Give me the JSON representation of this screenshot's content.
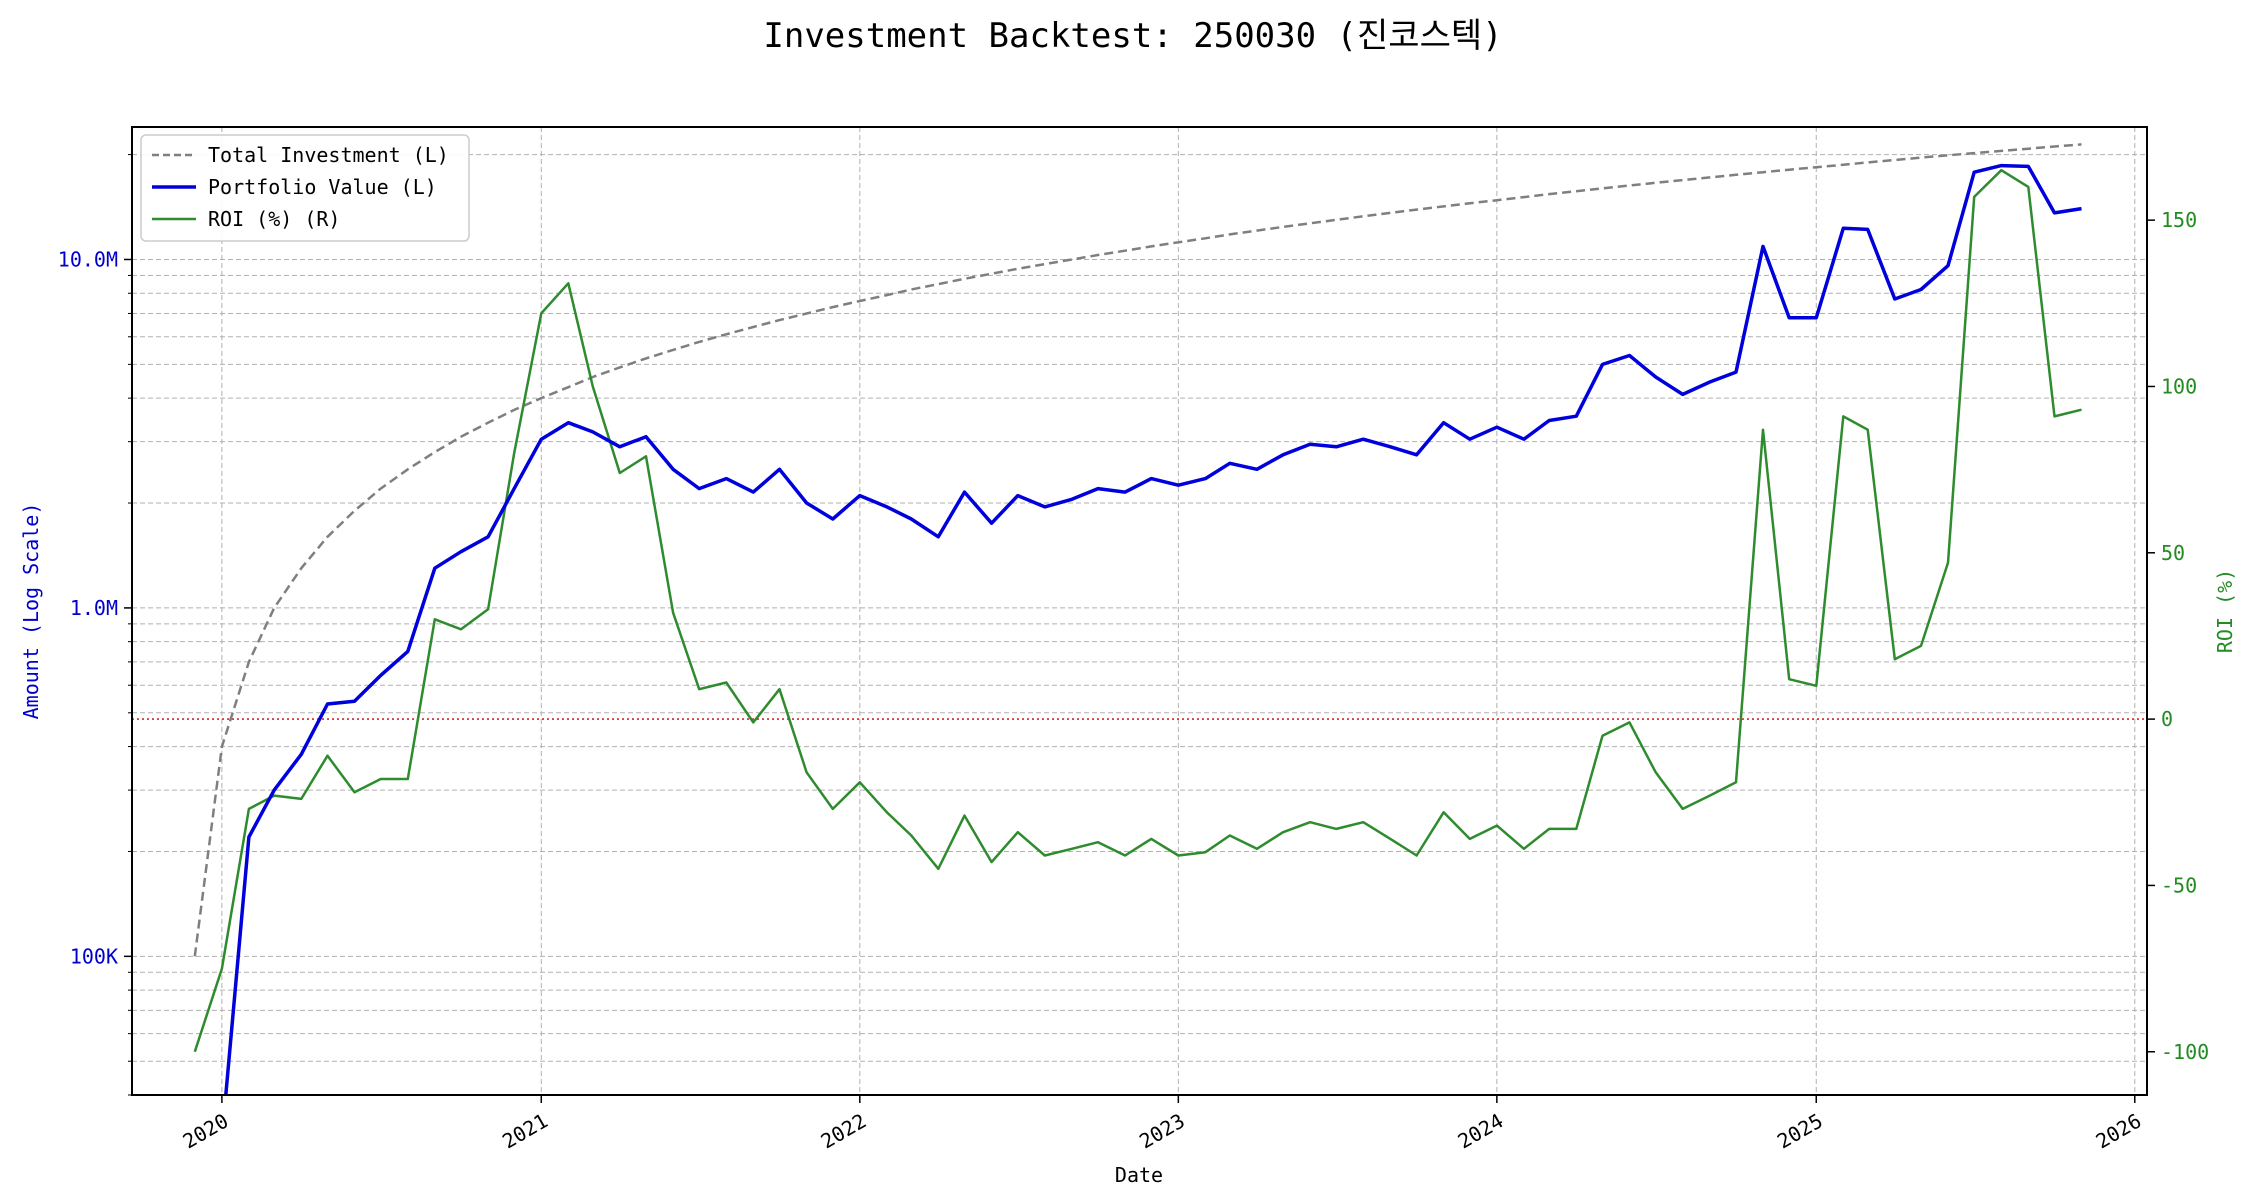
{
  "chart_data": {
    "type": "line",
    "title": "Investment Backtest: 250030 (진코스텍)",
    "xlabel": "Date",
    "ylabel_left": "Amount (Log Scale)",
    "ylabel_right": "ROI (%)",
    "y_left_scale": "log",
    "y_left_range": [
      40000,
      24000000
    ],
    "y_right_range": [
      -113,
      178
    ],
    "x_range": [
      "2019-09-20",
      "2026-01-15"
    ],
    "x_tick_labels": [
      "2020",
      "2021",
      "2022",
      "2023",
      "2024",
      "2025",
      "2026"
    ],
    "y_left_ticks": [
      {
        "value": 100000,
        "label": "100K"
      },
      {
        "value": 1000000,
        "label": "1.0M"
      },
      {
        "value": 10000000,
        "label": "10.0M"
      }
    ],
    "y_right_ticks": [
      -100,
      -50,
      0,
      50,
      100,
      150
    ],
    "grid": true,
    "legend_position": "upper-left",
    "colors": {
      "total_investment": "#7f7f7f",
      "portfolio": "#0000dd",
      "roi": "#2e8b2e",
      "zero_line": "#d62728",
      "left_axis": "#0000cc",
      "right_axis": "#228b22"
    },
    "series": [
      {
        "name": "Total Investment (L)",
        "axis": "left",
        "style": "dashed",
        "x": [
          "2019-12",
          "2020-01",
          "2020-02",
          "2020-03",
          "2020-04",
          "2020-05",
          "2020-06",
          "2020-07",
          "2020-08",
          "2020-09",
          "2020-10",
          "2020-11",
          "2020-12",
          "2021-01",
          "2021-02",
          "2021-03",
          "2021-04",
          "2021-05",
          "2021-06",
          "2021-07",
          "2021-08",
          "2021-09",
          "2021-10",
          "2021-11",
          "2021-12",
          "2022-01",
          "2022-02",
          "2022-03",
          "2022-04",
          "2022-05",
          "2022-06",
          "2022-07",
          "2022-08",
          "2022-09",
          "2022-10",
          "2022-11",
          "2022-12",
          "2023-01",
          "2023-02",
          "2023-03",
          "2023-04",
          "2023-05",
          "2023-06",
          "2023-07",
          "2023-08",
          "2023-09",
          "2023-10",
          "2023-11",
          "2023-12",
          "2024-01",
          "2024-02",
          "2024-03",
          "2024-04",
          "2024-05",
          "2024-06",
          "2024-07",
          "2024-08",
          "2024-09",
          "2024-10",
          "2024-11",
          "2024-12",
          "2025-01",
          "2025-02",
          "2025-03",
          "2025-04",
          "2025-05",
          "2025-06",
          "2025-07",
          "2025-08",
          "2025-09",
          "2025-10",
          "2025-11"
        ],
        "values": [
          100000,
          400000,
          700000,
          1000000,
          1300000,
          1600000,
          1900000,
          2200000,
          2500000,
          2800000,
          3100000,
          3400000,
          3700000,
          4000000,
          4300000,
          4600000,
          4900000,
          5200000,
          5500000,
          5800000,
          6100000,
          6400000,
          6700000,
          7000000,
          7300000,
          7600000,
          7900000,
          8200000,
          8500000,
          8800000,
          9100000,
          9400000,
          9700000,
          10000000,
          10300000,
          10600000,
          10900000,
          11200000,
          11500000,
          11800000,
          12100000,
          12400000,
          12700000,
          13000000,
          13300000,
          13600000,
          13900000,
          14200000,
          14500000,
          14800000,
          15100000,
          15400000,
          15700000,
          16000000,
          16300000,
          16600000,
          16900000,
          17200000,
          17500000,
          17800000,
          18100000,
          18400000,
          18700000,
          19000000,
          19300000,
          19600000,
          19900000,
          20200000,
          20500000,
          20800000,
          21100000,
          21400000
        ]
      },
      {
        "name": "Portfolio Value (L)",
        "axis": "left",
        "style": "solid",
        "x": [
          "2019-12",
          "2020-01",
          "2020-02",
          "2020-03",
          "2020-04",
          "2020-05",
          "2020-06",
          "2020-07",
          "2020-08",
          "2020-09",
          "2020-10",
          "2020-11",
          "2020-12",
          "2021-01",
          "2021-02",
          "2021-03",
          "2021-04",
          "2021-05",
          "2021-06",
          "2021-07",
          "2021-08",
          "2021-09",
          "2021-10",
          "2021-11",
          "2021-12",
          "2022-01",
          "2022-02",
          "2022-03",
          "2022-04",
          "2022-05",
          "2022-06",
          "2022-07",
          "2022-08",
          "2022-09",
          "2022-10",
          "2022-11",
          "2022-12",
          "2023-01",
          "2023-02",
          "2023-03",
          "2023-04",
          "2023-05",
          "2023-06",
          "2023-07",
          "2023-08",
          "2023-09",
          "2023-10",
          "2023-11",
          "2023-12",
          "2024-01",
          "2024-02",
          "2024-03",
          "2024-04",
          "2024-05",
          "2024-06",
          "2024-07",
          "2024-08",
          "2024-09",
          "2024-10",
          "2024-11",
          "2024-12",
          "2025-01",
          "2025-02",
          "2025-03",
          "2025-04",
          "2025-05",
          "2025-06",
          "2025-07",
          "2025-08",
          "2025-09",
          "2025-10",
          "2025-11"
        ],
        "values": [
          null,
          30000,
          220000,
          300000,
          380000,
          530000,
          540000,
          640000,
          750000,
          1300000,
          1450000,
          1600000,
          2200000,
          3050000,
          3400000,
          3200000,
          2900000,
          3100000,
          2500000,
          2200000,
          2350000,
          2150000,
          2500000,
          2000000,
          1800000,
          2100000,
          1950000,
          1800000,
          1600000,
          2150000,
          1750000,
          2100000,
          1950000,
          2050000,
          2200000,
          2150000,
          2350000,
          2250000,
          2350000,
          2600000,
          2500000,
          2750000,
          2950000,
          2900000,
          3050000,
          2900000,
          2750000,
          3400000,
          3050000,
          3300000,
          3050000,
          3450000,
          3550000,
          5000000,
          5300000,
          4600000,
          4100000,
          4450000,
          4750000,
          10900000,
          6800000,
          6800000,
          12300000,
          12200000,
          7700000,
          8200000,
          9600000,
          17800000,
          18600000,
          18500000,
          13600000,
          14000000
        ]
      },
      {
        "name": "ROI (%) (R)",
        "axis": "right",
        "style": "solid",
        "x": [
          "2019-12",
          "2020-01",
          "2020-02",
          "2020-03",
          "2020-04",
          "2020-05",
          "2020-06",
          "2020-07",
          "2020-08",
          "2020-09",
          "2020-10",
          "2020-11",
          "2020-12",
          "2021-01",
          "2021-02",
          "2021-03",
          "2021-04",
          "2021-05",
          "2021-06",
          "2021-07",
          "2021-08",
          "2021-09",
          "2021-10",
          "2021-11",
          "2021-12",
          "2022-01",
          "2022-02",
          "2022-03",
          "2022-04",
          "2022-05",
          "2022-06",
          "2022-07",
          "2022-08",
          "2022-09",
          "2022-10",
          "2022-11",
          "2022-12",
          "2023-01",
          "2023-02",
          "2023-03",
          "2023-04",
          "2023-05",
          "2023-06",
          "2023-07",
          "2023-08",
          "2023-09",
          "2023-10",
          "2023-11",
          "2023-12",
          "2024-01",
          "2024-02",
          "2024-03",
          "2024-04",
          "2024-05",
          "2024-06",
          "2024-07",
          "2024-08",
          "2024-09",
          "2024-10",
          "2024-11",
          "2024-12",
          "2025-01",
          "2025-02",
          "2025-03",
          "2025-04",
          "2025-05",
          "2025-06",
          "2025-07",
          "2025-08",
          "2025-09",
          "2025-10",
          "2025-11"
        ],
        "values": [
          -100,
          -75,
          -27,
          -23,
          -24,
          -11,
          -22,
          -18,
          -18,
          30,
          27,
          33,
          80,
          122,
          131,
          100,
          74,
          79,
          32,
          9,
          11,
          -1,
          9,
          -16,
          -27,
          -19,
          -28,
          -35,
          -45,
          -29,
          -43,
          -34,
          -41,
          -39,
          -37,
          -41,
          -36,
          -41,
          -40,
          -35,
          -39,
          -34,
          -31,
          -33,
          -31,
          -36,
          -41,
          -28,
          -36,
          -32,
          -39,
          -33,
          -33,
          -5,
          -1,
          -16,
          -27,
          -23,
          -19,
          87,
          12,
          10,
          91,
          87,
          18,
          22,
          47,
          157,
          165,
          160,
          91,
          93
        ]
      }
    ]
  }
}
